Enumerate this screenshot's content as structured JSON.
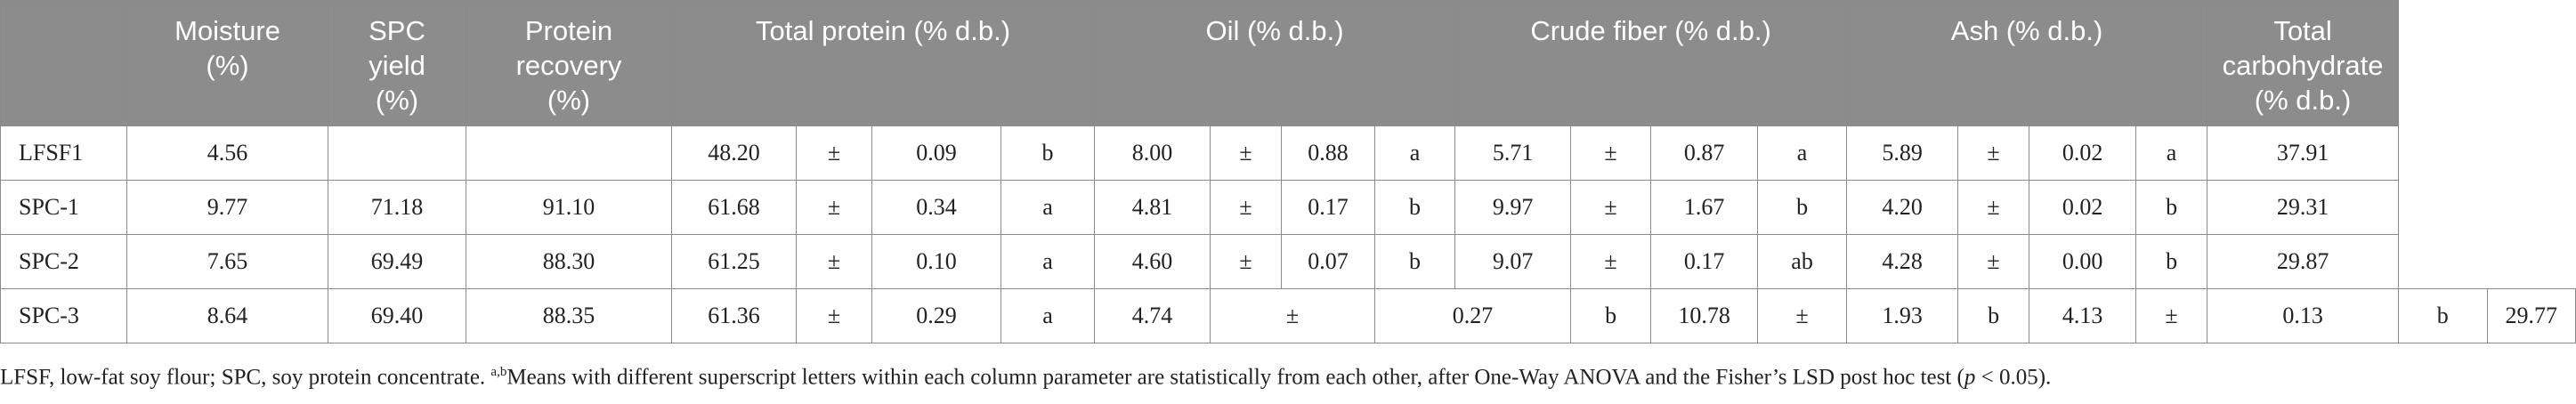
{
  "header": {
    "moisture": [
      "Moisture",
      "(%)"
    ],
    "spc_yield": [
      "SPC",
      "yield",
      "(%)"
    ],
    "protein_recovery": [
      "Protein",
      "recovery",
      "(%)"
    ],
    "total_protein": "Total protein (% d.b.)",
    "oil": "Oil (% d.b.)",
    "crude_fiber": "Crude fiber (% d.b.)",
    "ash": "Ash (% d.b.)",
    "total_carbohydrate": [
      "Total",
      "carbohydrate",
      "(% d.b.)"
    ]
  },
  "rows": [
    {
      "name": "LFSF1",
      "cells": [
        "4.56",
        "",
        "",
        "48.20",
        "±",
        "0.09",
        "b",
        "8.00",
        "±",
        "0.88",
        "a",
        "5.71",
        "±",
        "0.87",
        "a",
        "5.89",
        "±",
        "0.02",
        "a",
        "37.91"
      ]
    },
    {
      "name": "SPC-1",
      "cells": [
        "9.77",
        "71.18",
        "91.10",
        "61.68",
        "±",
        "0.34",
        "a",
        "4.81",
        "±",
        "0.17",
        "b",
        "9.97",
        "±",
        "1.67",
        "b",
        "4.20",
        "±",
        "0.02",
        "b",
        "29.31"
      ]
    },
    {
      "name": "SPC-2",
      "cells": [
        "7.65",
        "69.49",
        "88.30",
        "61.25",
        "±",
        "0.10",
        "a",
        "4.60",
        "±",
        "0.07",
        "b",
        "9.07",
        "±",
        "0.17",
        "ab",
        "4.28",
        "±",
        "0.00",
        "b",
        "29.87"
      ]
    },
    {
      "name": "SPC-3",
      "cells": [
        "8.64",
        "69.40",
        "88.35",
        "61.36",
        "±",
        "0.29",
        "a",
        "4.74",
        "±",
        "0.27",
        "b",
        "10.78",
        "±",
        "1.93",
        "b",
        "4.13",
        "±",
        "0.13",
        "b",
        "29.77"
      ]
    }
  ],
  "footnote": {
    "part1": "LFSF, low-fat soy flour; SPC, soy protein concentrate. ",
    "sup": "a,b",
    "part2": "Means with different superscript letters within each column parameter are statistically from each other, after One-Way ANOVA and the Fisher’s LSD post hoc test (",
    "p": "p",
    "part3": " < 0.05)."
  }
}
